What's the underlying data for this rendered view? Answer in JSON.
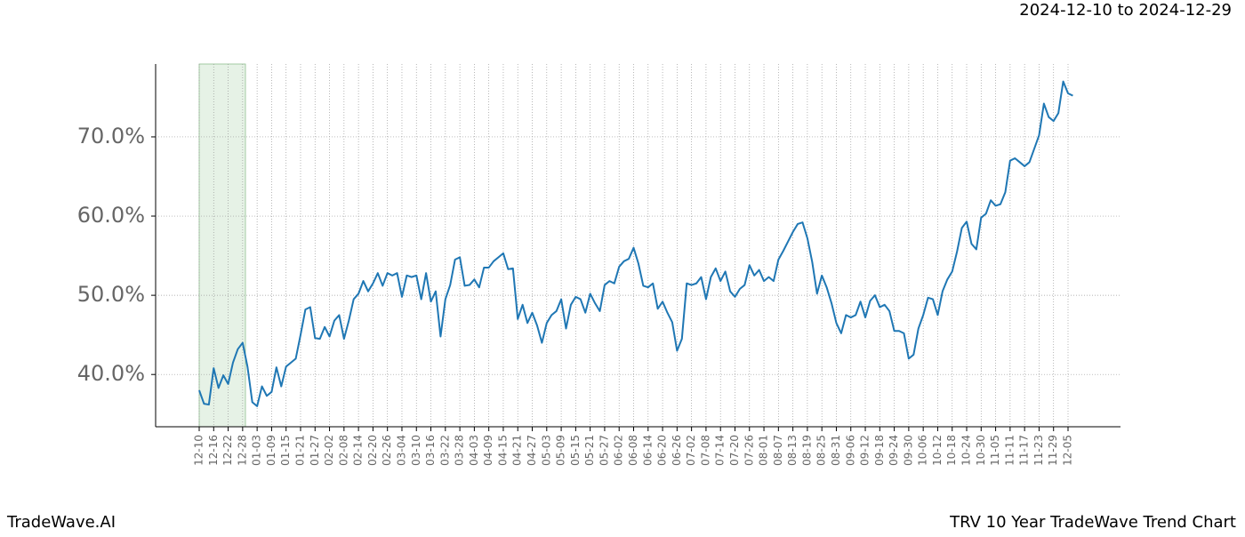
{
  "chart_data": {
    "type": "line",
    "title": "TRV 10 Year TradeWave Trend Chart",
    "subtitle": "2024-12-10 to 2024-12-29",
    "brand": "TradeWave.AI",
    "categories": [
      "12-10",
      null,
      null,
      "12-16",
      null,
      null,
      "12-22",
      null,
      null,
      "12-28",
      null,
      null,
      "01-03",
      null,
      null,
      "01-09",
      null,
      null,
      "01-15",
      null,
      null,
      "01-21",
      null,
      null,
      "01-27",
      null,
      null,
      "02-02",
      null,
      null,
      "02-08",
      null,
      null,
      "02-14",
      null,
      null,
      "02-20",
      null,
      null,
      "02-26",
      null,
      null,
      "03-04",
      null,
      null,
      "03-10",
      null,
      null,
      "03-16",
      null,
      null,
      "03-22",
      null,
      null,
      "03-28",
      null,
      null,
      "04-03",
      null,
      null,
      "04-09",
      null,
      null,
      "04-15",
      null,
      null,
      "04-21",
      null,
      null,
      "04-27",
      null,
      null,
      "05-03",
      null,
      null,
      "05-09",
      null,
      null,
      "05-15",
      null,
      null,
      "05-21",
      null,
      null,
      "05-27",
      null,
      null,
      "06-02",
      null,
      null,
      "06-08",
      null,
      null,
      "06-14",
      null,
      null,
      "06-20",
      null,
      null,
      "06-26",
      null,
      null,
      "07-02",
      null,
      null,
      "07-08",
      null,
      null,
      "07-14",
      null,
      null,
      "07-20",
      null,
      null,
      "07-26",
      null,
      null,
      "08-01",
      null,
      null,
      "08-07",
      null,
      null,
      "08-13",
      null,
      null,
      "08-19",
      null,
      null,
      "08-25",
      null,
      null,
      "08-31",
      null,
      null,
      "09-06",
      null,
      null,
      "09-12",
      null,
      null,
      "09-18",
      null,
      null,
      "09-24",
      null,
      null,
      "09-30",
      null,
      null,
      "10-06",
      null,
      null,
      "10-12",
      null,
      null,
      "10-18",
      null,
      null,
      "10-24",
      null,
      null,
      "10-30",
      null,
      null,
      "11-05",
      null,
      null,
      "11-11",
      null,
      null,
      "11-17",
      null,
      null,
      "11-23",
      null,
      null,
      "11-29",
      null,
      null,
      "12-05",
      null
    ],
    "series": [
      {
        "color": "#1f77b4",
        "values": [
          38,
          36.3,
          36.2,
          40.8,
          38.3,
          39.9,
          38.8,
          41.5,
          43.2,
          44,
          41,
          36.5,
          36,
          38.5,
          37.3,
          37.8,
          40.9,
          38.5,
          41,
          41.5,
          42,
          45,
          48.2,
          48.5,
          44.6,
          44.5,
          46,
          44.8,
          46.8,
          47.5,
          44.5,
          46.8,
          49.5,
          50.2,
          51.8,
          50.5,
          51.5,
          52.8,
          51.2,
          52.8,
          52.5,
          52.8,
          49.8,
          52.5,
          52.3,
          52.5,
          49.5,
          52.8,
          49.2,
          50.5,
          44.8,
          49.5,
          51.3,
          54.5,
          54.8,
          51.2,
          51.3,
          52,
          51,
          53.5,
          53.5,
          54.3,
          54.8,
          55.3,
          53.3,
          53.4,
          47,
          48.8,
          46.5,
          47.8,
          46.2,
          44,
          46.5,
          47.5,
          48,
          49.5,
          45.8,
          48.8,
          49.8,
          49.5,
          47.8,
          50.2,
          49,
          48,
          51.3,
          51.8,
          51.5,
          53.6,
          54.3,
          54.6,
          56,
          54,
          51.2,
          51,
          51.5,
          48.3,
          49.2,
          47.8,
          46.6,
          43,
          44.5,
          51.5,
          51.3,
          51.5,
          52.3,
          49.5,
          52.3,
          53.4,
          51.8,
          53,
          50.5,
          49.8,
          50.8,
          51.3,
          53.8,
          52.5,
          53.2,
          51.8,
          52.3,
          51.8,
          54.5,
          55.6,
          56.8,
          58,
          59,
          59.2,
          57.2,
          54.2,
          50.2,
          52.5,
          51,
          49,
          46.5,
          45.2,
          47.5,
          47.2,
          47.5,
          49.2,
          47.2,
          49.3,
          50,
          48.5,
          48.8,
          48,
          45.5,
          45.5,
          45.2,
          42,
          42.5,
          45.8,
          47.5,
          49.7,
          49.5,
          47.5,
          50.5,
          52,
          53,
          55.5,
          58.5,
          59.3,
          56.5,
          55.8,
          59.8,
          60.3,
          62,
          61.3,
          61.5,
          63,
          67,
          67.3,
          66.8,
          66.3,
          66.8,
          68.5,
          70.2,
          74.2,
          72.5,
          72,
          73,
          77,
          75.5,
          75.2
        ]
      }
    ],
    "ylim": [
      33.4,
      79.2
    ],
    "yticks": [
      {
        "value": 40,
        "label": "40.0%"
      },
      {
        "value": 50,
        "label": "50.0%"
      },
      {
        "value": 60,
        "label": "60.0%"
      },
      {
        "value": 70,
        "label": "70.0%"
      }
    ],
    "grid": true
  }
}
